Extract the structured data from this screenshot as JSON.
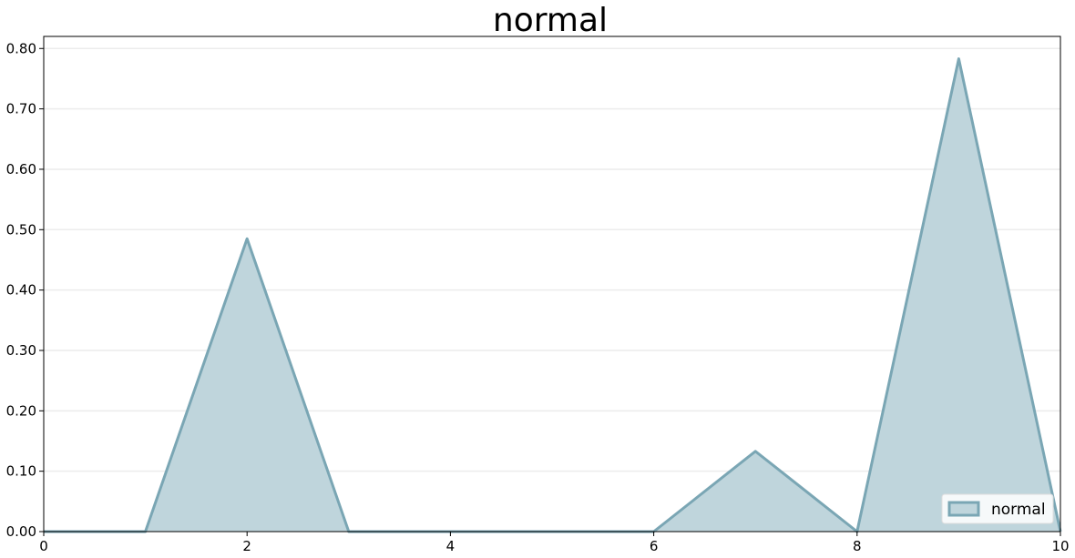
{
  "chart_data": {
    "type": "area",
    "title": "normal",
    "xlabel": "",
    "ylabel": "",
    "xlim": [
      0,
      10
    ],
    "ylim": [
      0,
      0.82
    ],
    "x_ticks": [
      0,
      2,
      4,
      6,
      8,
      10
    ],
    "x_tick_labels": [
      "0",
      "2",
      "4",
      "6",
      "8",
      "10"
    ],
    "y_ticks": [
      0,
      0.1,
      0.2,
      0.3,
      0.4,
      0.5,
      0.6,
      0.7,
      0.8
    ],
    "y_tick_labels": [
      "0.00",
      "0.10",
      "0.20",
      "0.30",
      "0.40",
      "0.50",
      "0.60",
      "0.70",
      "0.80"
    ],
    "grid": "horizontal",
    "legend_position": "bottom-right",
    "series": [
      {
        "name": "normal",
        "color": "#7aa6b4",
        "fill_color": "#bfd5dc",
        "x": [
          0,
          1,
          2,
          3,
          4,
          5,
          6,
          7,
          8,
          9,
          10
        ],
        "y": [
          0,
          0,
          0.485,
          0,
          0,
          0,
          0,
          0.133,
          0,
          0.783,
          0
        ]
      }
    ]
  }
}
